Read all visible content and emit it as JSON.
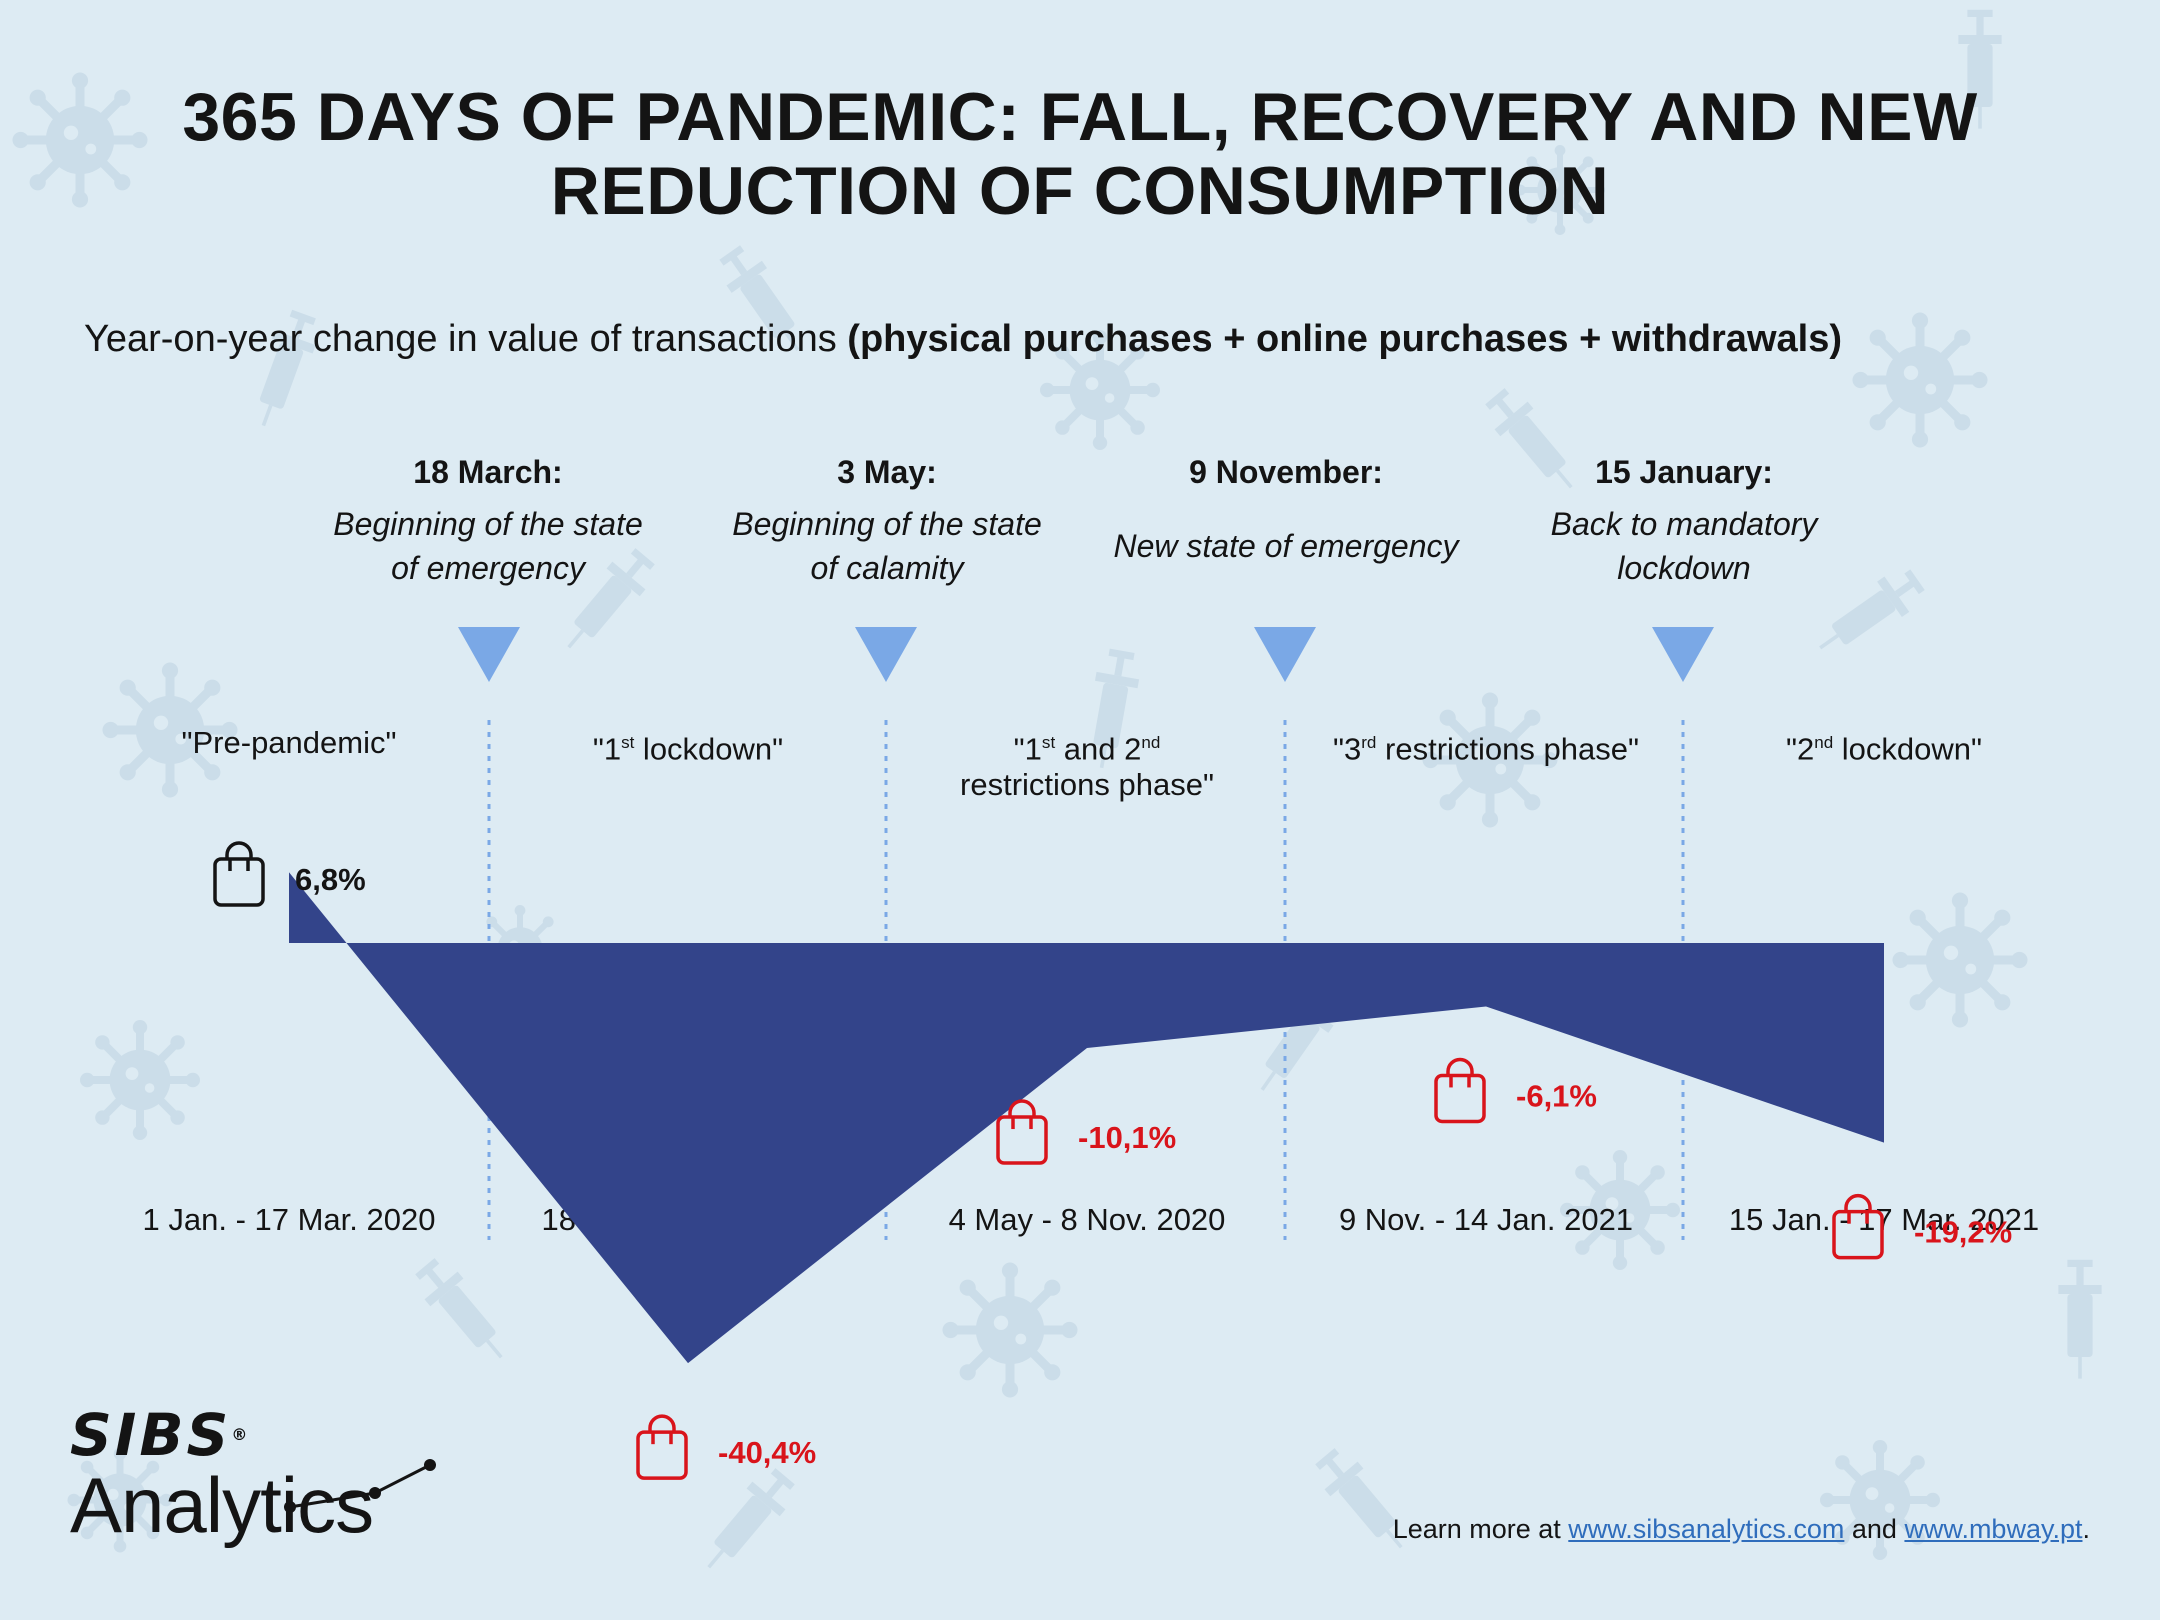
{
  "title_lines": [
    "365 DAYS OF PANDEMIC: FALL, RECOVERY AND NEW",
    "REDUCTION OF CONSUMPTION"
  ],
  "subtitle": {
    "plain": "Year-on-year change in value of transactions ",
    "bold": "(physical purchases + online purchases + withdrawals)"
  },
  "events": [
    {
      "date": "18 March:",
      "desc_lines": [
        "Beginning of the state",
        "of emergency"
      ]
    },
    {
      "date": "3 May:",
      "desc_lines": [
        "Beginning of the state",
        "of calamity"
      ]
    },
    {
      "date": "9 November:",
      "desc_lines": [
        "New state of emergency"
      ]
    },
    {
      "date": "15 January:",
      "desc_lines": [
        "Back to mandatory",
        "lockdown"
      ]
    }
  ],
  "chart_data": {
    "type": "area",
    "ylabel": "Year-on-year change in value of transactions",
    "baseline": 0,
    "periods": [
      {
        "name": "Pre-pandemic",
        "label_parts": [
          [
            "\"Pre-pandemic\"",
            ""
          ]
        ],
        "range": "1 Jan. - 17 Mar. 2020",
        "value": 6.8,
        "value_label": "6,8%",
        "color": "#141414"
      },
      {
        "name": "1st lockdown",
        "label_parts": [
          [
            "\"1",
            ""
          ],
          [
            "st",
            "sup"
          ],
          [
            " lockdown\"",
            ""
          ]
        ],
        "range": "18 Mar. - 3 May 2020",
        "value": -40.4,
        "value_label": "-40,4%",
        "color": "#d9141b"
      },
      {
        "name": "1st and 2nd restrictions phase",
        "label_parts": [
          [
            "\"1",
            ""
          ],
          [
            "st",
            "sup"
          ],
          [
            " and 2",
            ""
          ],
          [
            "nd",
            "sup"
          ],
          [
            "\n",
            "br"
          ],
          [
            "restrictions phase\"",
            ""
          ]
        ],
        "range": "4 May - 8 Nov. 2020",
        "value": -10.1,
        "value_label": "-10,1%",
        "color": "#d9141b"
      },
      {
        "name": "3rd restrictions phase",
        "label_parts": [
          [
            "\"3",
            ""
          ],
          [
            "rd",
            "sup"
          ],
          [
            " restrictions phase\"",
            ""
          ]
        ],
        "range": "9 Nov. - 14 Jan. 2021",
        "value": -6.1,
        "value_label": "-6,1%",
        "color": "#d9141b"
      },
      {
        "name": "2nd lockdown",
        "label_parts": [
          [
            "\"2",
            ""
          ],
          [
            "nd",
            "sup"
          ],
          [
            " lockdown\"",
            ""
          ]
        ],
        "range": "15 Jan. - 17 Mar. 2021",
        "value": -19.2,
        "value_label": "-19,2%",
        "color": "#d9141b"
      }
    ],
    "fill_color": "#33448a",
    "marker_color": "#7aa8e6"
  },
  "footer": {
    "prefix": "Learn more at ",
    "link1": "www.sibsanalytics.com",
    "middle": " and ",
    "link2": "www.mbway.pt",
    "suffix": "."
  },
  "logo": {
    "sibs": "SIBS",
    "sibs_mark": "®",
    "analytics": "Analytics"
  },
  "colors": {
    "background": "#ddebf3",
    "title": "#141414",
    "link": "#2f6dbc"
  },
  "icons": [
    "shopping-bag-icon",
    "virus-icon",
    "syringe-icon",
    "triangle-down-icon"
  ]
}
